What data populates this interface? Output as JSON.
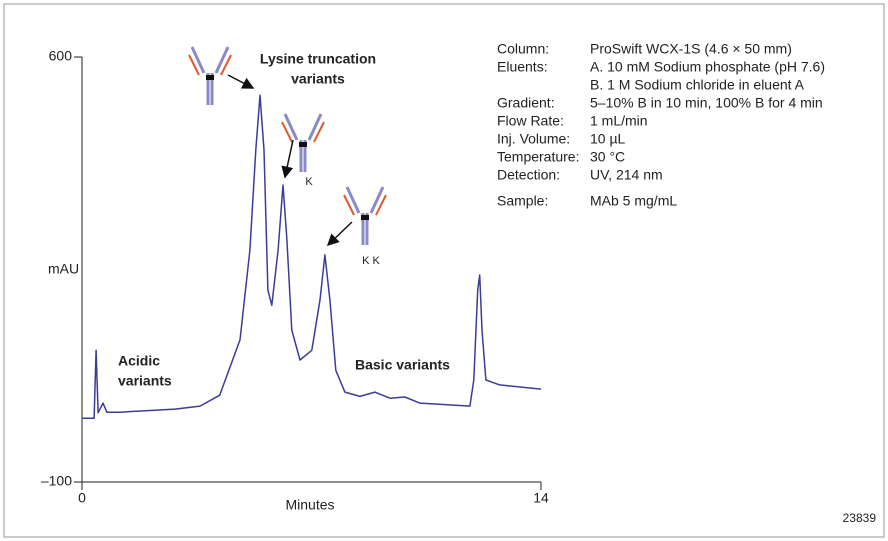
{
  "chart_data": {
    "type": "line",
    "x_label": "Minutes",
    "y_label": "mAU",
    "footnote": "23839",
    "color": "#3b3b9a",
    "xlim": [
      0,
      14
    ],
    "xticks": [
      0,
      14
    ],
    "ylim": [
      -100,
      600
    ],
    "yticks": [
      {
        "value": -100,
        "label": "–100"
      },
      600
    ],
    "x": [
      0,
      0.37,
      0.43,
      0.49,
      0.64,
      0.76,
      1.16,
      2.84,
      3.6,
      4.2,
      4.82,
      5.12,
      5.3,
      5.43,
      5.55,
      5.67,
      5.79,
      5.98,
      6.13,
      6.25,
      6.4,
      6.65,
      7.01,
      7.26,
      7.41,
      7.56,
      7.74,
      8.02,
      8.48,
      8.93,
      9.39,
      9.85,
      10.3,
      10.9,
      11.83,
      11.95,
      12.07,
      12.13,
      12.2,
      12.32,
      12.74,
      14
    ],
    "values": [
      5,
      5,
      117,
      14,
      30,
      15,
      15,
      20,
      25,
      43,
      134,
      282,
      447,
      537,
      447,
      216,
      191,
      282,
      389,
      299,
      150,
      101,
      117,
      200,
      274,
      200,
      84,
      48,
      41,
      48,
      38,
      40,
      30,
      28,
      25,
      68,
      216,
      241,
      150,
      68,
      60,
      53
    ],
    "annotations": [
      "Lysine truncation",
      "variants",
      "Acidic",
      "variants",
      "Basic variants",
      "K",
      "K K"
    ],
    "conditions": [
      {
        "label": "Column:",
        "values": [
          "ProSwift WCX-1S (4.6 × 50 mm)"
        ]
      },
      {
        "label": "Eluents:",
        "values": [
          "A. 10 mM Sodium phosphate (pH 7.6)",
          "B. 1 M Sodium chloride in eluent A"
        ]
      },
      {
        "label": "Gradient:",
        "values": [
          "5–10% B in 10 min, 100% B for 4 min"
        ]
      },
      {
        "label": "Flow Rate:",
        "values": [
          "1 mL/min"
        ]
      },
      {
        "label": "Inj. Volume:",
        "values": [
          "10 µL"
        ]
      },
      {
        "label": "Temperature:",
        "values": [
          "30 °C"
        ]
      },
      {
        "label": "Detection:",
        "values": [
          "UV, 214 nm"
        ]
      },
      {
        "label": "Sample:",
        "values": [
          "MAb 5 mg/mL"
        ]
      }
    ]
  }
}
